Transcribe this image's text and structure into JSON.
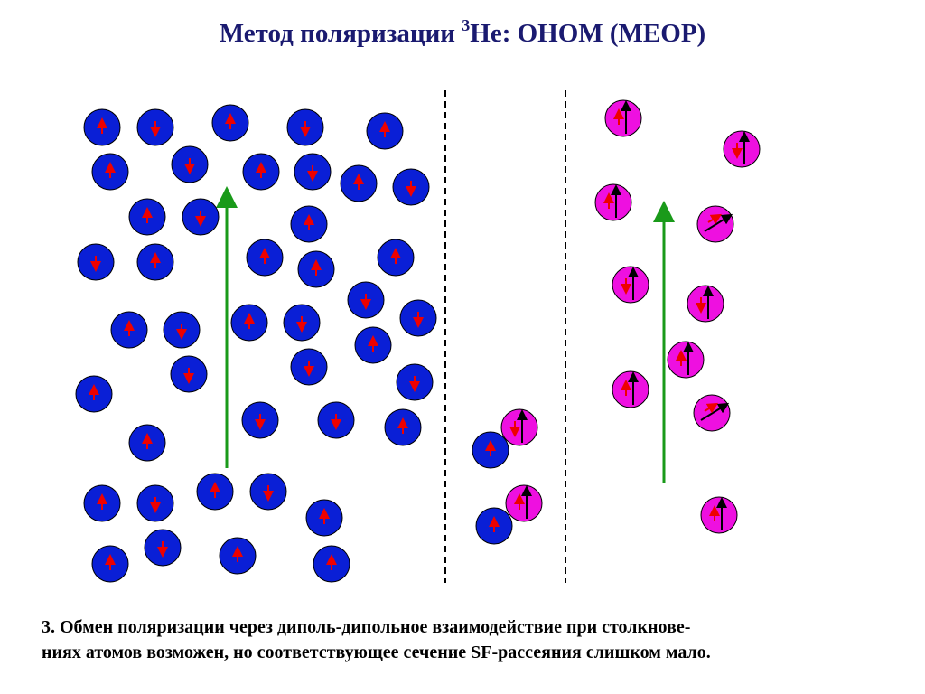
{
  "title": {
    "before": "Метод поляризации ",
    "sup": "3",
    "after": "He: ОНОМ (MEOP)"
  },
  "caption": {
    "lines": [
      "3. Обмен поляризации через диполь-дипольное взаимодействие при столкнове-",
      "ниях атомов возможен, но соответствующее сечение SF-рассеяния слишком мало."
    ]
  }
}
